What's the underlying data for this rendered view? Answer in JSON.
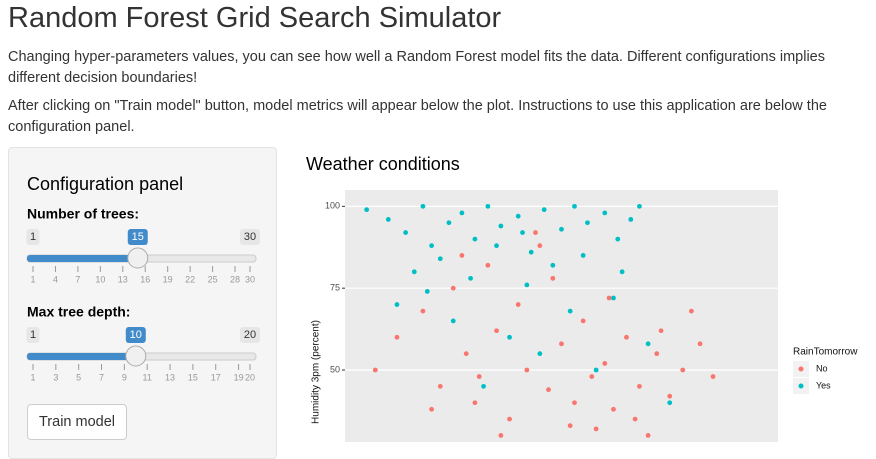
{
  "header": {
    "title": "Random Forest Grid Search Simulator"
  },
  "intro": [
    "Changing hyper-parameters values, you can see how well a Random Forest model fits the data. Different configurations implies different decision boundaries!",
    "After clicking on \"Train model\" button, model metrics will appear below the plot. Instructions to use this application are below the configuration panel."
  ],
  "config_panel": {
    "title": "Configuration panel",
    "sliders": [
      {
        "label": "Number of trees:",
        "min": 1,
        "max": 30,
        "value": 15,
        "ticks": [
          1,
          4,
          7,
          10,
          13,
          16,
          19,
          22,
          25,
          28,
          30
        ]
      },
      {
        "label": "Max tree depth:",
        "min": 1,
        "max": 20,
        "value": 10,
        "ticks": [
          1,
          3,
          5,
          7,
          9,
          11,
          13,
          15,
          17,
          19,
          20
        ]
      }
    ],
    "button": "Train model"
  },
  "chart_data": {
    "type": "scatter",
    "title": "Weather conditions",
    "y_label": "Humidity 3pm (percent)",
    "legend_title": "RainTomorrow",
    "xlim": [
      0,
      100
    ],
    "ylim": [
      28,
      105
    ],
    "yticks": [
      50,
      75,
      100
    ],
    "grid": true,
    "series": [
      {
        "name": "No",
        "color": "#F8766D",
        "x": [
          7,
          12,
          18,
          22,
          25,
          28,
          30,
          33,
          35,
          38,
          40,
          42,
          45,
          47,
          50,
          52,
          55,
          57,
          60,
          62,
          65,
          68,
          70,
          72,
          75,
          78,
          82,
          85,
          20,
          27,
          36,
          44,
          53,
          61,
          67,
          73,
          31,
          48,
          58,
          80
        ],
        "values": [
          50,
          60,
          68,
          45,
          75,
          55,
          40,
          82,
          62,
          35,
          70,
          50,
          88,
          44,
          58,
          33,
          65,
          48,
          52,
          38,
          60,
          45,
          30,
          55,
          42,
          50,
          58,
          48,
          38,
          85,
          30,
          92,
          40,
          72,
          35,
          62,
          48,
          78,
          32,
          68
        ]
      },
      {
        "name": "Yes",
        "color": "#00BFC4",
        "x": [
          5,
          10,
          14,
          18,
          20,
          24,
          27,
          30,
          33,
          36,
          40,
          43,
          46,
          50,
          53,
          56,
          60,
          63,
          66,
          68,
          16,
          22,
          29,
          35,
          42,
          48,
          55,
          62,
          12,
          25,
          38,
          45,
          58,
          32,
          70,
          19,
          52,
          41,
          64,
          75
        ],
        "values": [
          99,
          96,
          92,
          100,
          88,
          95,
          98,
          90,
          100,
          94,
          97,
          86,
          99,
          93,
          100,
          95,
          98,
          90,
          96,
          100,
          80,
          84,
          78,
          88,
          76,
          82,
          85,
          72,
          70,
          65,
          60,
          55,
          50,
          45,
          58,
          74,
          68,
          92,
          80,
          40
        ]
      }
    ]
  }
}
